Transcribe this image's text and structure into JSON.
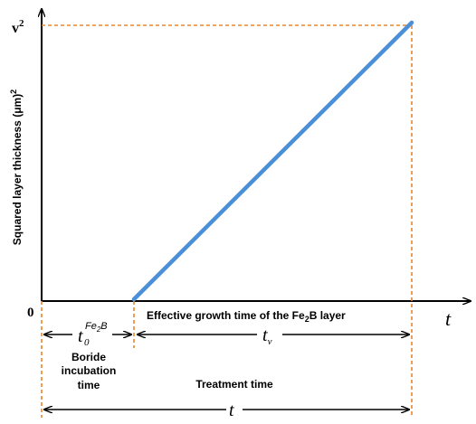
{
  "diagram": {
    "y_axis_label": "Squared layer thickness (μm)",
    "y_axis_label_exponent": "2",
    "y_top_label": "v",
    "y_top_exponent": "2",
    "origin_label": "0",
    "x_axis_symbol": "t",
    "incubation": {
      "symbol": "t",
      "subscript": "0",
      "superscript_prefix": "Fe",
      "superscript_sub": "2",
      "superscript_suffix": "B",
      "label_line1": "Boride",
      "label_line2": "incubation",
      "label_line3": "time"
    },
    "effective": {
      "label_prefix": "Effective growth time of the Fe",
      "label_sub": "2",
      "label_suffix": "B layer",
      "symbol": "t",
      "subscript": "v"
    },
    "treatment": {
      "label": "Treatment time",
      "symbol": "t"
    },
    "colors": {
      "growth_line": "#4a8fd8",
      "guide_lines": "#e8872a",
      "axes": "#000000"
    }
  },
  "chart_data": {
    "type": "line",
    "series": [
      {
        "x": [
          "t0",
          "t"
        ],
        "y": [
          0,
          "v^2"
        ]
      }
    ],
    "xlabel": "t",
    "ylabel": "Squared layer thickness (μm)^2"
  }
}
